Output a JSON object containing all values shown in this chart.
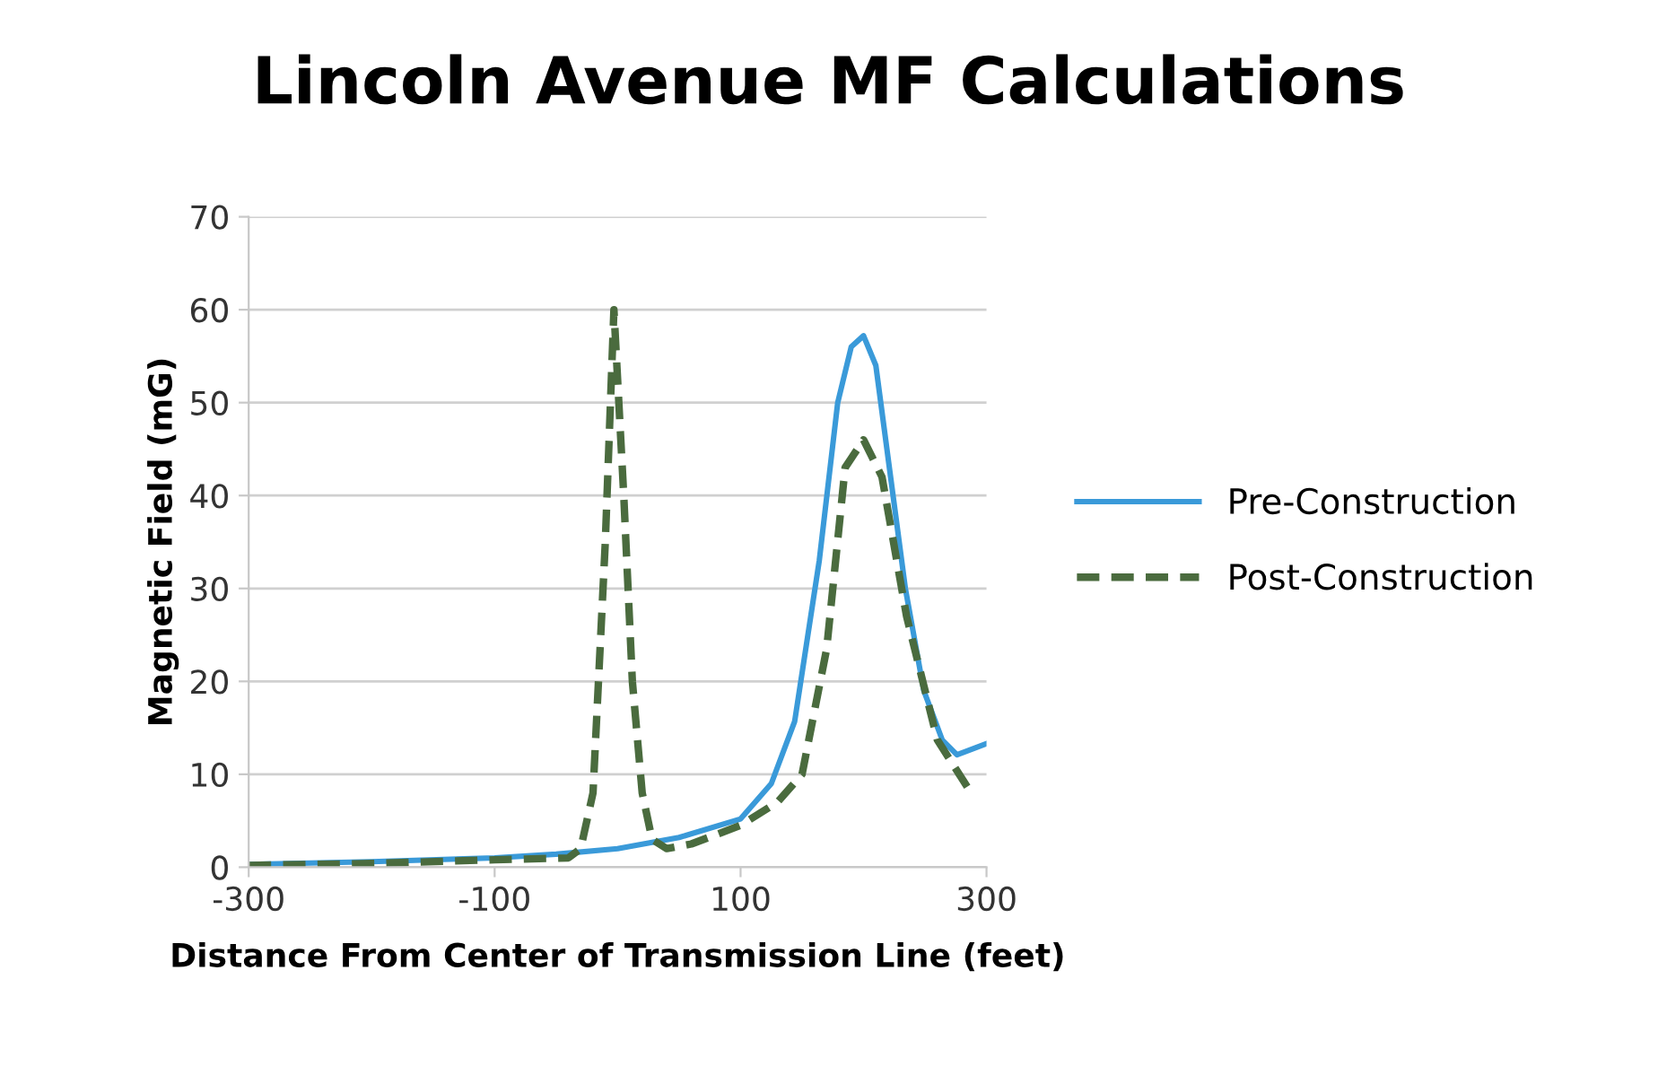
{
  "chart_data": {
    "type": "line",
    "title": "Lincoln Avenue MF Calculations",
    "xlabel": "Distance From Center of Transmission Line (feet)",
    "ylabel": "Magnetic Field (mG)",
    "xlim": [
      -300,
      300
    ],
    "xticks": [
      -300,
      -100,
      100,
      300
    ],
    "ylim": [
      0,
      70
    ],
    "yticks": [
      0,
      10,
      20,
      30,
      40,
      50,
      60,
      70
    ],
    "grid": "y",
    "legend": "right",
    "marker": "none",
    "series": [
      {
        "name": "Pre-Construction",
        "color": "#3a9ad9",
        "line_style": "solid",
        "x": [
          -300,
          -200,
          -100,
          -50,
          0,
          50,
          100,
          125,
          144,
          164,
          179,
          190,
          200,
          210,
          219,
          234,
          249,
          264,
          276,
          290,
          300
        ],
        "values": [
          0.3,
          0.6,
          1.0,
          1.4,
          2.0,
          3.2,
          5.2,
          9,
          15.7,
          33,
          50,
          56,
          57.2,
          54,
          45,
          30,
          19,
          13.7,
          12.1,
          12.8,
          13.3
        ]
      },
      {
        "name": "Post-Construction",
        "color": "#4a6b3e",
        "line_style": "dashed",
        "x": [
          -300,
          -200,
          -100,
          -40,
          -30,
          -20,
          -10,
          -3,
          5,
          12,
          20,
          28,
          40,
          60,
          100,
          130,
          150,
          170,
          185,
          200,
          215,
          235,
          260,
          285
        ],
        "values": [
          0.2,
          0.4,
          0.8,
          1,
          2,
          8,
          35,
          60,
          40,
          20,
          8,
          3,
          2,
          2.5,
          4.5,
          7,
          10,
          23.5,
          43,
          46,
          42,
          27,
          13.7,
          8.5
        ]
      }
    ]
  }
}
